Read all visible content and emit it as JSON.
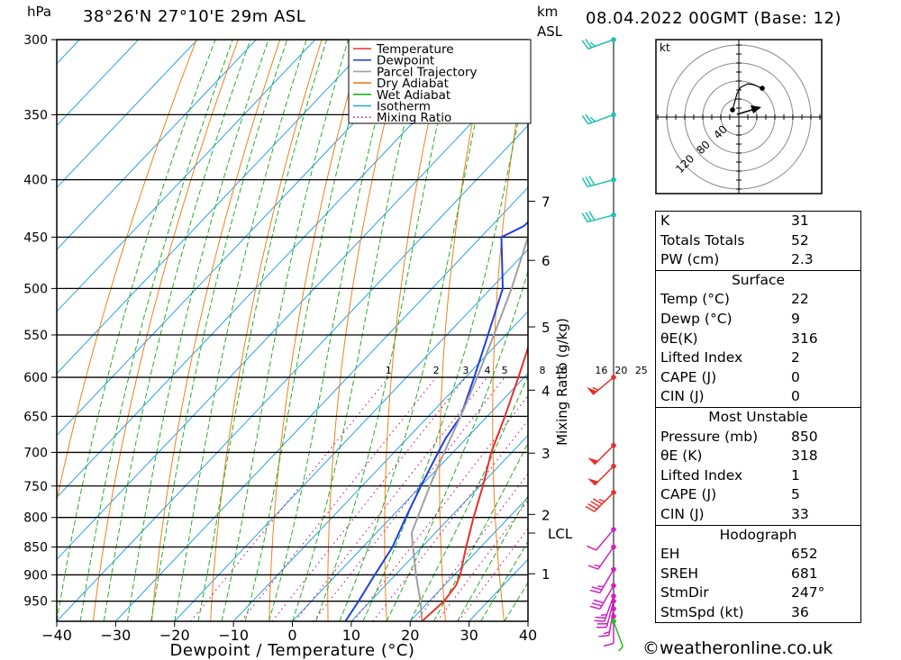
{
  "header": {
    "pressure_unit": "hPa",
    "location": "38°26'N  27°10'E  29m  ASL",
    "height_unit": "km",
    "height_unit2": "ASL",
    "datetime": "08.04.2022  00GMT  (Base: 12)"
  },
  "chart_data": {
    "type": "line",
    "subtype": "skew-T log-P diagram",
    "xlabel": "Dewpoint / Temperature (°C)",
    "ylabel_left": "hPa",
    "ylabel_right": "Mixing Ratio (g/kg)",
    "x_ticks": [
      -40,
      -30,
      -20,
      -10,
      0,
      10,
      20,
      30,
      40
    ],
    "x_tick_labels": [
      "−40",
      "−30",
      "−20",
      "−10",
      "0",
      "10",
      "20",
      "30",
      "40"
    ],
    "xlim": [
      -40,
      40
    ],
    "pressure_levels": [
      300,
      350,
      400,
      450,
      500,
      550,
      600,
      650,
      700,
      750,
      800,
      850,
      900,
      950
    ],
    "pressure_range": [
      300,
      990
    ],
    "km_ticks": [
      {
        "label": "7",
        "p": 418
      },
      {
        "label": "6",
        "p": 472
      },
      {
        "label": "5",
        "p": 541
      },
      {
        "label": "4",
        "p": 616
      },
      {
        "label": "3",
        "p": 701
      },
      {
        "label": "2",
        "p": 795
      },
      {
        "label": "LCL",
        "p": 826
      },
      {
        "label": "1",
        "p": 898
      }
    ],
    "mixing_ratio_labels": [
      "1",
      "2",
      "3",
      "4",
      "5",
      "8",
      "10",
      "16",
      "20",
      "25"
    ],
    "mixing_ratio_values": [
      1,
      2,
      3,
      4,
      5,
      8,
      10,
      16,
      20,
      25
    ],
    "legend": [
      {
        "name": "Temperature",
        "color": "#e8302b",
        "style": "solid"
      },
      {
        "name": "Dewpoint",
        "color": "#2040e0",
        "style": "solid"
      },
      {
        "name": "Parcel Trajectory",
        "color": "#a0a0a0",
        "style": "solid"
      },
      {
        "name": "Dry Adiabat",
        "color": "#f0801a",
        "style": "solid"
      },
      {
        "name": "Wet Adiabat",
        "color": "#20b020",
        "style": "solid"
      },
      {
        "name": "Isotherm",
        "color": "#2aa0e8",
        "style": "solid"
      },
      {
        "name": "Mixing Ratio",
        "color": "#d0208a",
        "style": "dotted"
      }
    ],
    "legend_position": "top-right",
    "series": [
      {
        "name": "Temperature",
        "color": "#e8302b",
        "points": [
          {
            "p": 990,
            "t": 22
          },
          {
            "p": 950,
            "t": 22.5
          },
          {
            "p": 920,
            "t": 22
          },
          {
            "p": 900,
            "t": 21
          },
          {
            "p": 850,
            "t": 17.5
          },
          {
            "p": 800,
            "t": 14
          },
          {
            "p": 750,
            "t": 10.5
          },
          {
            "p": 700,
            "t": 6.5
          },
          {
            "p": 650,
            "t": 3
          },
          {
            "p": 600,
            "t": -1
          },
          {
            "p": 550,
            "t": -5.5
          },
          {
            "p": 500,
            "t": -10.5
          },
          {
            "p": 460,
            "t": -15.5
          },
          {
            "p": 450,
            "t": -16
          },
          {
            "p": 440,
            "t": -15.5
          },
          {
            "p": 400,
            "t": -20.5
          },
          {
            "p": 350,
            "t": -28.5
          },
          {
            "p": 300,
            "t": -37.5
          }
        ]
      },
      {
        "name": "Dewpoint",
        "color": "#2040e0",
        "points": [
          {
            "p": 990,
            "t": 9
          },
          {
            "p": 950,
            "t": 8
          },
          {
            "p": 900,
            "t": 6.5
          },
          {
            "p": 850,
            "t": 5
          },
          {
            "p": 800,
            "t": 2.5
          },
          {
            "p": 750,
            "t": 0
          },
          {
            "p": 700,
            "t": -2.5
          },
          {
            "p": 680,
            "t": -3.5
          },
          {
            "p": 650,
            "t": -4.5
          },
          {
            "p": 600,
            "t": -8.5
          },
          {
            "p": 550,
            "t": -13
          },
          {
            "p": 500,
            "t": -18
          },
          {
            "p": 450,
            "t": -26.5
          },
          {
            "p": 440,
            "t": -24.5
          },
          {
            "p": 420,
            "t": -24
          },
          {
            "p": 400,
            "t": -26.5
          },
          {
            "p": 350,
            "t": -35
          },
          {
            "p": 300,
            "t": -44
          }
        ]
      },
      {
        "name": "Parcel Trajectory",
        "color": "#a0a0a0",
        "points": [
          {
            "p": 990,
            "t": 22
          },
          {
            "p": 950,
            "t": 18.5
          },
          {
            "p": 900,
            "t": 13.5
          },
          {
            "p": 850,
            "t": 8.5
          },
          {
            "p": 826,
            "t": 6
          },
          {
            "p": 800,
            "t": 4.5
          },
          {
            "p": 750,
            "t": 1.5
          },
          {
            "p": 700,
            "t": -1.5
          },
          {
            "p": 650,
            "t": -4.5
          },
          {
            "p": 600,
            "t": -8
          },
          {
            "p": 550,
            "t": -12
          },
          {
            "p": 500,
            "t": -16.5
          },
          {
            "p": 450,
            "t": -22
          },
          {
            "p": 400,
            "t": -28.5
          },
          {
            "p": 350,
            "t": -36
          },
          {
            "p": 300,
            "t": -45
          }
        ]
      }
    ],
    "wind_barbs": [
      {
        "p": 300,
        "dir": 250,
        "spd": 25
      },
      {
        "p": 350,
        "dir": 250,
        "spd": 25
      },
      {
        "p": 400,
        "dir": 255,
        "spd": 30
      },
      {
        "p": 430,
        "dir": 255,
        "spd": 30
      },
      {
        "p": 600,
        "dir": 230,
        "spd": 55
      },
      {
        "p": 690,
        "dir": 225,
        "spd": 50
      },
      {
        "p": 720,
        "dir": 225,
        "spd": 50
      },
      {
        "p": 760,
        "dir": 225,
        "spd": 45
      },
      {
        "p": 820,
        "dir": 220,
        "spd": 10
      },
      {
        "p": 850,
        "dir": 215,
        "spd": 15
      },
      {
        "p": 890,
        "dir": 210,
        "spd": 25
      },
      {
        "p": 920,
        "dir": 210,
        "spd": 30
      },
      {
        "p": 940,
        "dir": 200,
        "spd": 25
      },
      {
        "p": 950,
        "dir": 195,
        "spd": 20
      },
      {
        "p": 965,
        "dir": 190,
        "spd": 15
      },
      {
        "p": 980,
        "dir": 180,
        "spd": 10
      },
      {
        "p": 990,
        "dir": 160,
        "spd": 5
      }
    ]
  },
  "hodograph": {
    "unit": "kt",
    "ring_labels": [
      "40",
      "80",
      "120"
    ]
  },
  "indices_table": {
    "rows": [
      {
        "label": "K",
        "value": "31"
      },
      {
        "label": "Totals Totals",
        "value": "52"
      },
      {
        "label": "PW (cm)",
        "value": "2.3"
      }
    ]
  },
  "surface_table": {
    "title": "Surface",
    "rows": [
      {
        "label": "Temp (°C)",
        "value": "22"
      },
      {
        "label": "Dewp (°C)",
        "value": "9"
      },
      {
        "label": "θE(K)",
        "value": "316"
      },
      {
        "label": "Lifted Index",
        "value": "2"
      },
      {
        "label": "CAPE (J)",
        "value": "0"
      },
      {
        "label": "CIN (J)",
        "value": "0"
      }
    ]
  },
  "unstable_table": {
    "title": "Most Unstable",
    "rows": [
      {
        "label": "Pressure (mb)",
        "value": "850"
      },
      {
        "label": "θE (K)",
        "value": "318"
      },
      {
        "label": "Lifted Index",
        "value": "1"
      },
      {
        "label": "CAPE (J)",
        "value": "5"
      },
      {
        "label": "CIN (J)",
        "value": "33"
      }
    ]
  },
  "hodograph_table": {
    "title": "Hodograph",
    "rows": [
      {
        "label": "EH",
        "value": "652"
      },
      {
        "label": "SREH",
        "value": "681"
      },
      {
        "label": "StmDir",
        "value": "247°"
      },
      {
        "label": "StmSpd (kt)",
        "value": "36"
      }
    ]
  },
  "footer": {
    "copyright": "©weatheronline.co.uk"
  },
  "colors": {
    "temperature": "#e8302b",
    "dewpoint": "#2040e0",
    "parcel": "#a0a0a0",
    "dry_adiabat": "#f0801a",
    "wet_adiabat": "#20b020",
    "isotherm": "#2aa0e8",
    "mixing_ratio": "#d0208a",
    "wind_upper": "#20c0b0",
    "wind_mid": "#e8302b",
    "wind_low": "#d020c0",
    "wind_surface": "#20c020"
  }
}
